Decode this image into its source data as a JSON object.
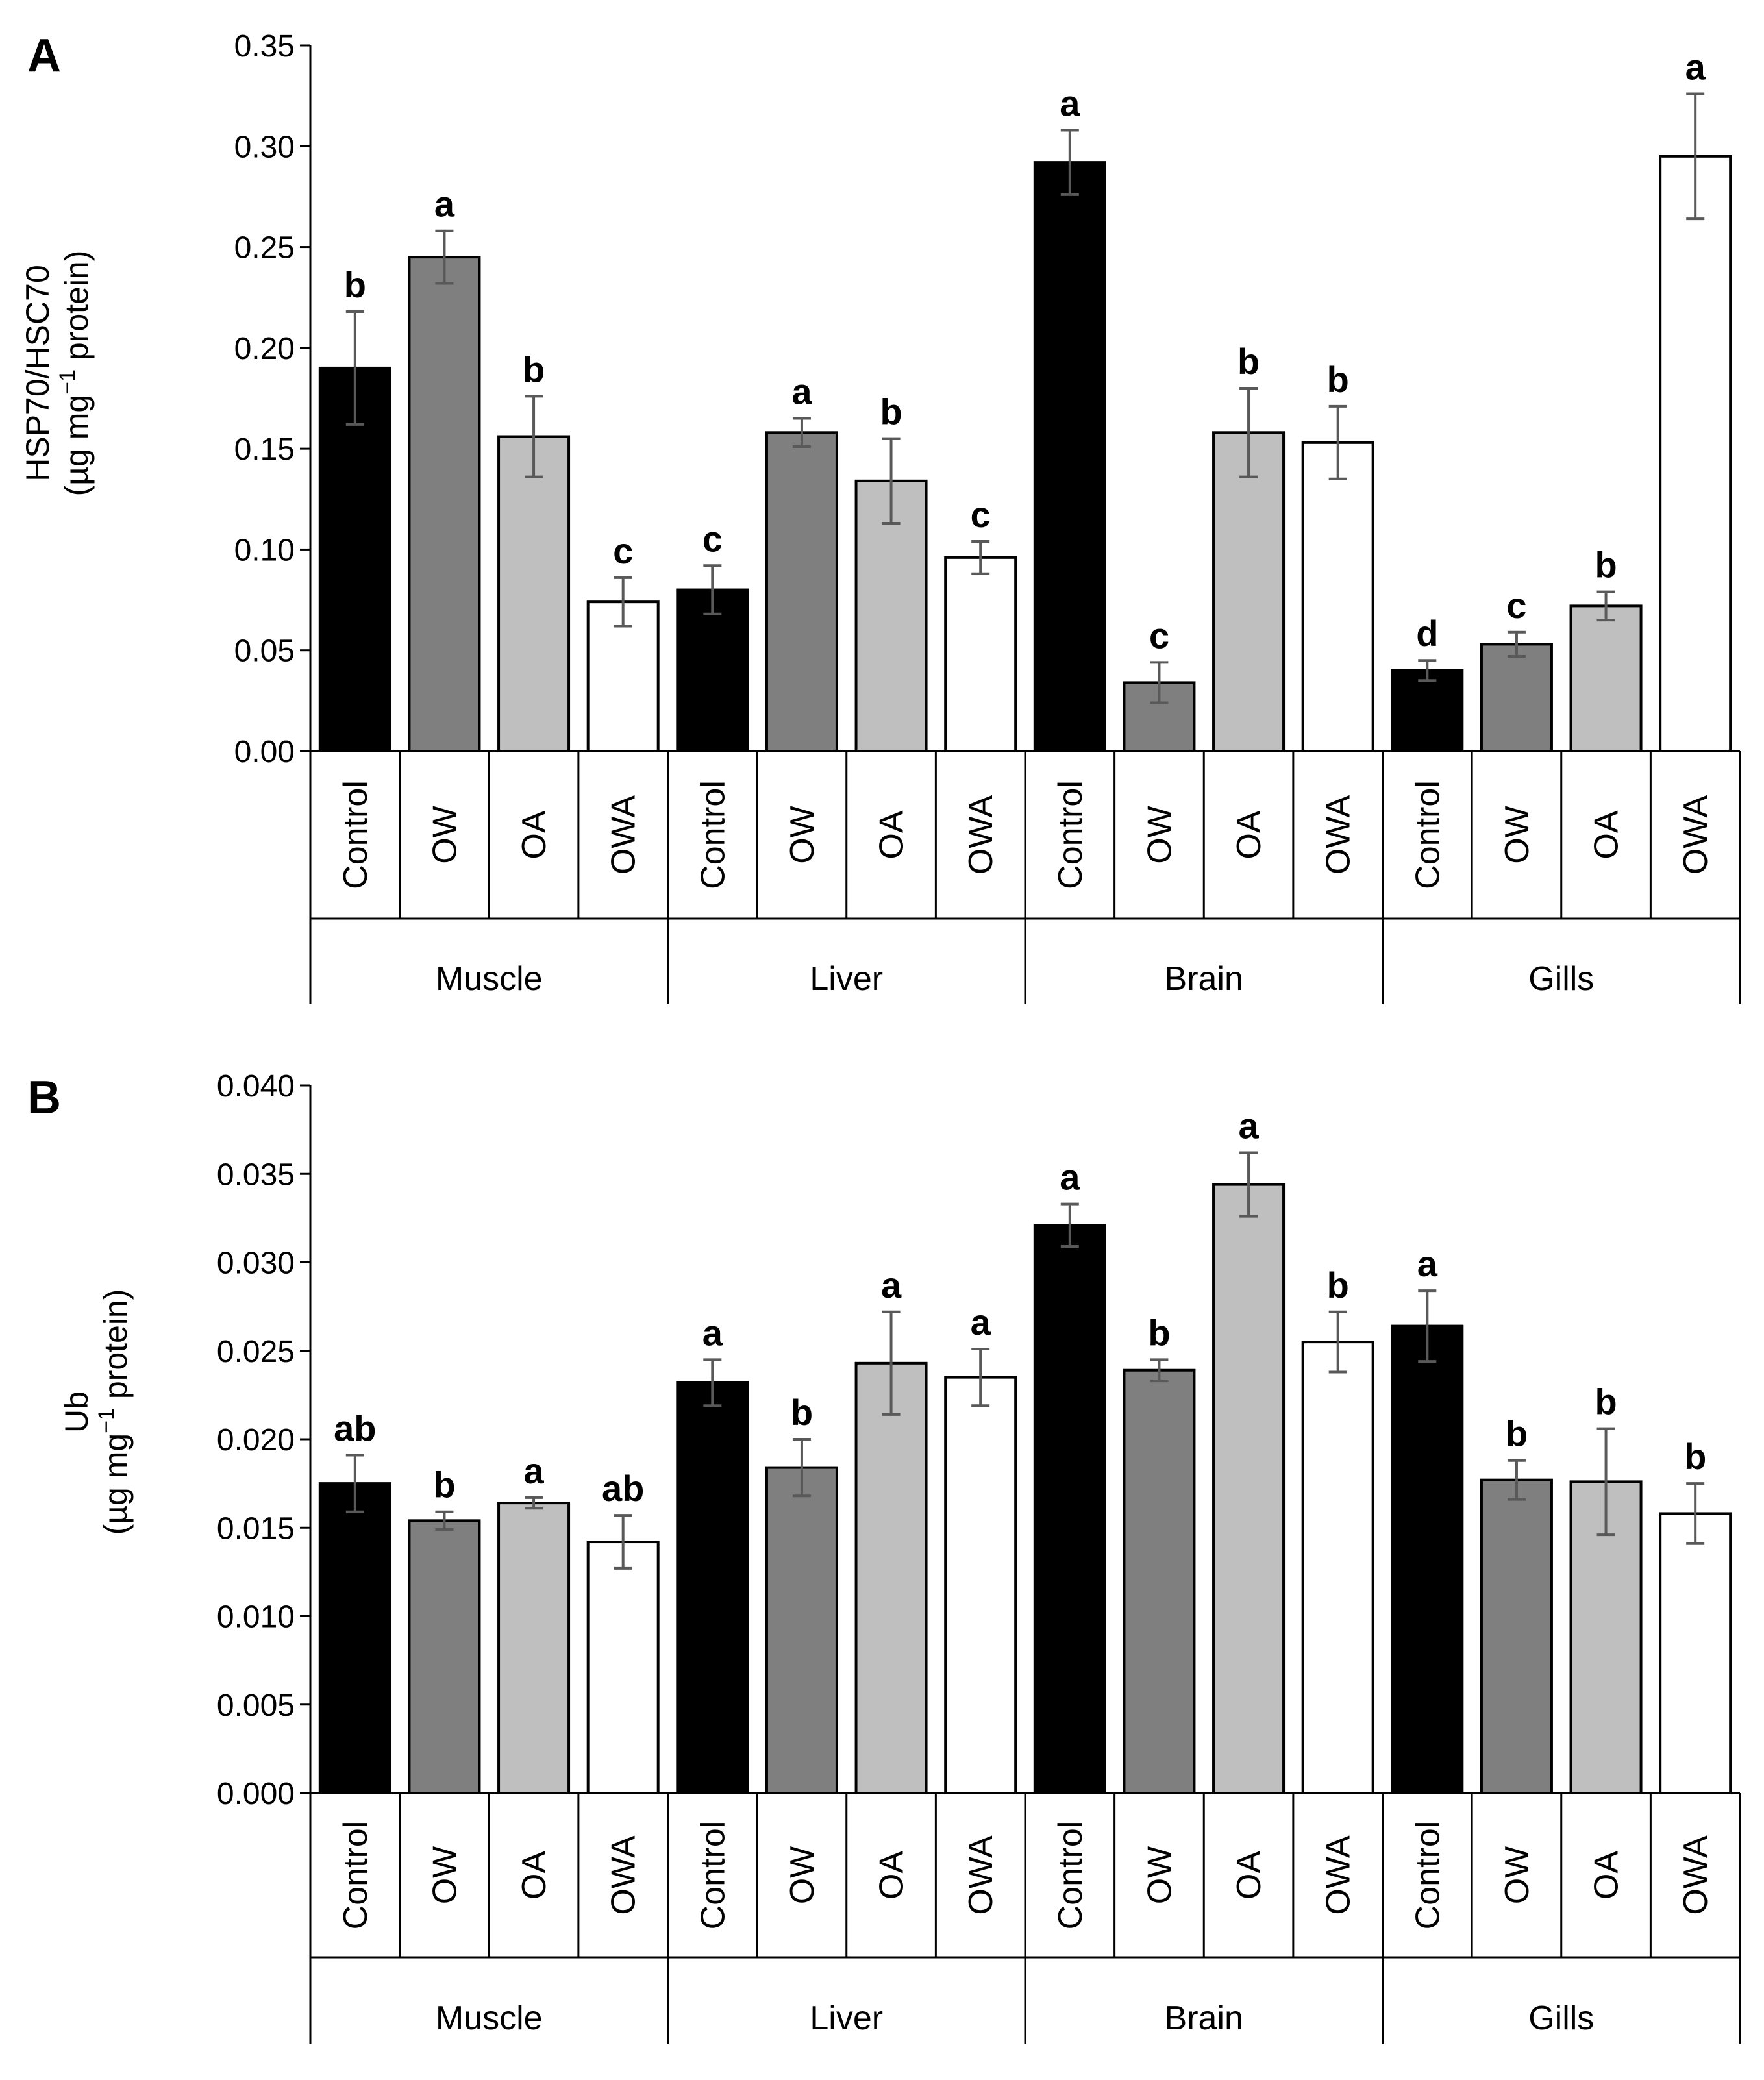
{
  "chart_data": [
    {
      "type": "bar",
      "panel": "A",
      "ylabel_line1": "HSP70/HSC70",
      "ylabel_line2_pre": "(µg mg",
      "ylabel_line2_sup": "−1",
      "ylabel_line2_post": " protein)",
      "ylim": [
        0,
        0.35
      ],
      "yticks": [
        "0.00",
        "0.05",
        "0.10",
        "0.15",
        "0.20",
        "0.25",
        "0.30",
        "0.35"
      ],
      "groups": [
        "Muscle",
        "Liver",
        "Brain",
        "Gills"
      ],
      "treatments": [
        "Control",
        "OW",
        "OA",
        "OWA"
      ],
      "treatment_colors": [
        "#000000",
        "#7f7f7f",
        "#bfbfbf",
        "#ffffff"
      ],
      "values": [
        0.19,
        0.245,
        0.156,
        0.074,
        0.08,
        0.158,
        0.134,
        0.096,
        0.292,
        0.034,
        0.158,
        0.153,
        0.04,
        0.053,
        0.072,
        0.295
      ],
      "errors": [
        0.028,
        0.013,
        0.02,
        0.012,
        0.012,
        0.007,
        0.021,
        0.008,
        0.016,
        0.01,
        0.022,
        0.018,
        0.005,
        0.006,
        0.007,
        0.031
      ],
      "letters": [
        "b",
        "a",
        "b",
        "c",
        "c",
        "a",
        "b",
        "c",
        "a",
        "c",
        "b",
        "b",
        "d",
        "c",
        "b",
        "a"
      ]
    },
    {
      "type": "bar",
      "panel": "B",
      "ylabel_line1": "Ub",
      "ylabel_line2_pre": "(µg mg",
      "ylabel_line2_sup": "−1",
      "ylabel_line2_post": " protein)",
      "ylim": [
        0,
        0.04
      ],
      "yticks": [
        "0.000",
        "0.005",
        "0.010",
        "0.015",
        "0.020",
        "0.025",
        "0.030",
        "0.035",
        "0.040"
      ],
      "groups": [
        "Muscle",
        "Liver",
        "Brain",
        "Gills"
      ],
      "treatments": [
        "Control",
        "OW",
        "OA",
        "OWA"
      ],
      "treatment_colors": [
        "#000000",
        "#7f7f7f",
        "#bfbfbf",
        "#ffffff"
      ],
      "values": [
        0.0175,
        0.0154,
        0.0164,
        0.0142,
        0.0232,
        0.0184,
        0.0243,
        0.0235,
        0.0321,
        0.0239,
        0.0344,
        0.0255,
        0.0264,
        0.0177,
        0.0176,
        0.0158
      ],
      "errors": [
        0.0016,
        0.0005,
        0.0003,
        0.0015,
        0.0013,
        0.0016,
        0.0029,
        0.0016,
        0.0012,
        0.0006,
        0.0018,
        0.0017,
        0.002,
        0.0011,
        0.003,
        0.0017
      ],
      "letters": [
        "ab",
        "b",
        "a",
        "ab",
        "a",
        "b",
        "a",
        "a",
        "a",
        "b",
        "a",
        "b",
        "a",
        "b",
        "b",
        "b"
      ]
    }
  ]
}
